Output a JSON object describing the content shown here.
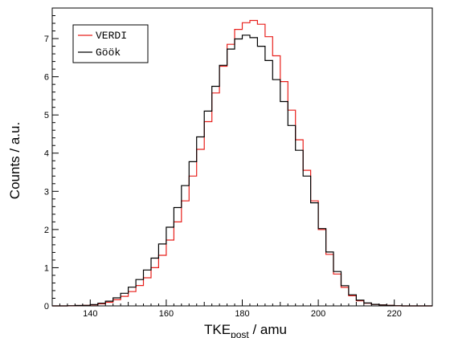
{
  "chart_data": {
    "type": "line",
    "style": "step-histogram",
    "title": "",
    "xlabel": "TKE",
    "xlabel_subscript": "post",
    "xlabel_suffix": " / amu",
    "ylabel": "Counts / a.u.",
    "xlim": [
      130,
      230
    ],
    "ylim": [
      0,
      7.8
    ],
    "x_ticks_major": [
      140,
      160,
      180,
      200,
      220
    ],
    "y_ticks_major": [
      0,
      1,
      2,
      3,
      4,
      5,
      6,
      7
    ],
    "grid": false,
    "legend_position": "top-left",
    "series": [
      {
        "name": "VERDI",
        "color": "#e8201c",
        "x": [
          130,
          132,
          134,
          136,
          138,
          140,
          142,
          144,
          146,
          148,
          150,
          152,
          154,
          156,
          158,
          160,
          162,
          164,
          166,
          168,
          170,
          172,
          174,
          176,
          178,
          180,
          182,
          184,
          186,
          188,
          190,
          192,
          194,
          196,
          198,
          200,
          202,
          204,
          206,
          208,
          210,
          212,
          214,
          216,
          218,
          220,
          222,
          224,
          226,
          228,
          230
        ],
        "values": [
          0.0,
          0.0,
          0.0,
          0.01,
          0.01,
          0.02,
          0.04,
          0.07,
          0.12,
          0.2,
          0.3,
          0.45,
          0.62,
          0.85,
          1.15,
          1.5,
          1.95,
          2.45,
          3.05,
          3.75,
          4.45,
          5.2,
          5.95,
          6.6,
          7.1,
          7.38,
          7.45,
          7.5,
          7.25,
          6.85,
          6.25,
          5.5,
          4.75,
          3.95,
          3.15,
          2.35,
          1.65,
          1.05,
          0.62,
          0.35,
          0.18,
          0.09,
          0.05,
          0.03,
          0.02,
          0.01,
          0.0,
          0.0,
          0.0,
          0.0,
          0.0
        ]
      },
      {
        "name": "Göök",
        "color": "#000000",
        "x": [
          130,
          132,
          134,
          136,
          138,
          140,
          142,
          144,
          146,
          148,
          150,
          152,
          154,
          156,
          158,
          160,
          162,
          164,
          166,
          168,
          170,
          172,
          174,
          176,
          178,
          180,
          182,
          184,
          186,
          188,
          190,
          192,
          194,
          196,
          198,
          200,
          202,
          204,
          206,
          208,
          210,
          212,
          214,
          216,
          218,
          220,
          222,
          224,
          226,
          228,
          230
        ],
        "values": [
          0.0,
          0.0,
          0.0,
          0.01,
          0.01,
          0.02,
          0.05,
          0.09,
          0.16,
          0.26,
          0.4,
          0.58,
          0.8,
          1.08,
          1.42,
          1.82,
          2.3,
          2.85,
          3.45,
          4.1,
          4.75,
          5.45,
          6.05,
          6.55,
          6.9,
          7.08,
          7.1,
          6.95,
          6.65,
          6.2,
          5.65,
          5.05,
          4.4,
          3.75,
          3.05,
          2.35,
          1.7,
          1.12,
          0.68,
          0.38,
          0.2,
          0.1,
          0.05,
          0.03,
          0.02,
          0.01,
          0.0,
          0.0,
          0.0,
          0.0,
          0.0
        ]
      }
    ]
  }
}
